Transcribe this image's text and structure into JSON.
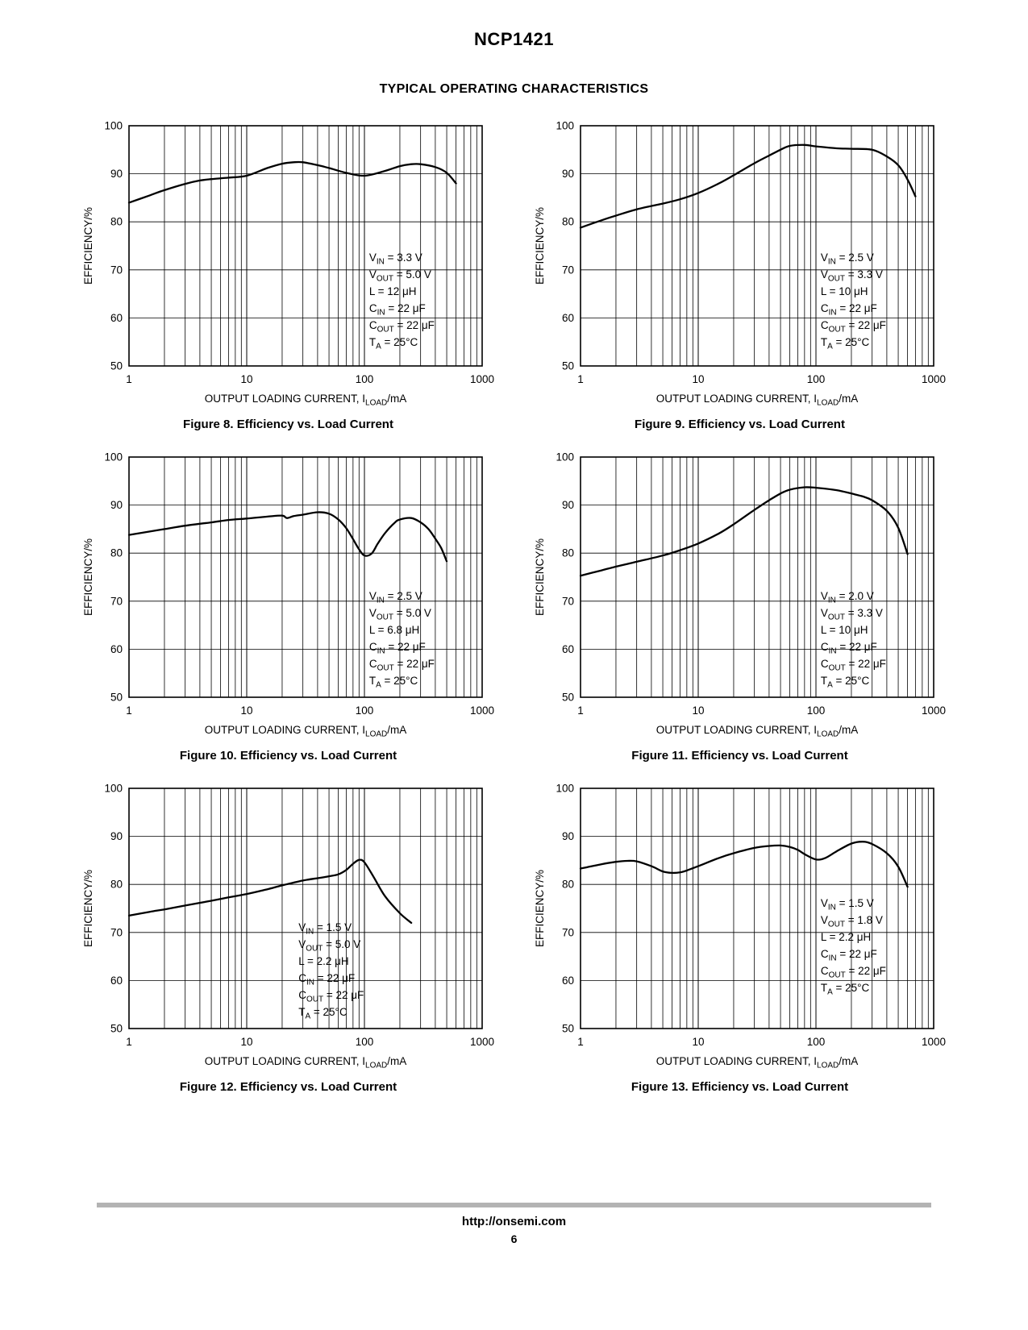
{
  "page": {
    "title": "NCP1421",
    "subtitle": "TYPICAL OPERATING CHARACTERISTICS",
    "footer_url": "http://onsemi.com",
    "page_number": "6"
  },
  "chart_data": [
    {
      "type": "line",
      "figure_caption": "Figure 8. Efficiency vs. Load Current",
      "xlabel": "OUTPUT LOADING CURRENT, I~LOAD~/mA",
      "ylabel": "EFFICIENCY/%",
      "xscale": "log",
      "xlim": [
        1,
        1000
      ],
      "ylim": [
        50,
        100
      ],
      "xticks": [
        1,
        10,
        100,
        1000
      ],
      "yticks": [
        50,
        60,
        70,
        80,
        90,
        100
      ],
      "grid": "log-x-minor-on, y-major-on",
      "annotation": [
        "V~IN~ = 3.3 V",
        "V~OUT~ = 5.0 V",
        "L = 12 μH",
        "C~IN~ = 22 μF",
        "C~OUT~ = 22 μF",
        "T~A~ = 25°C"
      ],
      "annotation_pos": {
        "x": 0.68,
        "y": 0.52
      },
      "series": [
        {
          "name": "efficiency",
          "points": [
            [
              1,
              84
            ],
            [
              1.5,
              85.5
            ],
            [
              2,
              86.6
            ],
            [
              3,
              87.9
            ],
            [
              4,
              88.6
            ],
            [
              5,
              88.9
            ],
            [
              7,
              89.2
            ],
            [
              10,
              89.6
            ],
            [
              15,
              91.2
            ],
            [
              20,
              92.1
            ],
            [
              25,
              92.4
            ],
            [
              30,
              92.4
            ],
            [
              40,
              91.8
            ],
            [
              50,
              91.2
            ],
            [
              70,
              90.2
            ],
            [
              100,
              89.6
            ],
            [
              150,
              90.6
            ],
            [
              200,
              91.6
            ],
            [
              250,
              92
            ],
            [
              300,
              92
            ],
            [
              400,
              91.4
            ],
            [
              500,
              90.2
            ],
            [
              600,
              88
            ]
          ]
        }
      ]
    },
    {
      "type": "line",
      "figure_caption": "Figure 9. Efficiency vs. Load Current",
      "xlabel": "OUTPUT LOADING CURRENT, I~LOAD~/mA",
      "ylabel": "EFFICIENCY/%",
      "xscale": "log",
      "xlim": [
        1,
        1000
      ],
      "ylim": [
        50,
        100
      ],
      "xticks": [
        1,
        10,
        100,
        1000
      ],
      "yticks": [
        50,
        60,
        70,
        80,
        90,
        100
      ],
      "grid": "log-x-minor-on, y-major-on",
      "annotation": [
        "V~IN~ = 2.5 V",
        "V~OUT~ = 3.3 V",
        "L = 10 μH",
        "C~IN~ = 22 μF",
        "C~OUT~ = 22 μF",
        "T~A~ = 25°C"
      ],
      "annotation_pos": {
        "x": 0.68,
        "y": 0.52
      },
      "series": [
        {
          "name": "efficiency",
          "points": [
            [
              1,
              78.8
            ],
            [
              1.5,
              80.3
            ],
            [
              2,
              81.3
            ],
            [
              3,
              82.6
            ],
            [
              5,
              83.8
            ],
            [
              7,
              84.7
            ],
            [
              10,
              86
            ],
            [
              15,
              88
            ],
            [
              20,
              89.7
            ],
            [
              30,
              92.2
            ],
            [
              40,
              93.8
            ],
            [
              50,
              95
            ],
            [
              60,
              95.8
            ],
            [
              80,
              96
            ],
            [
              100,
              95.7
            ],
            [
              150,
              95.3
            ],
            [
              200,
              95.2
            ],
            [
              300,
              95
            ],
            [
              400,
              93.6
            ],
            [
              500,
              91.8
            ],
            [
              600,
              88.8
            ],
            [
              700,
              85.3
            ]
          ]
        }
      ]
    },
    {
      "type": "line",
      "figure_caption": "Figure 10. Efficiency vs. Load Current",
      "xlabel": "OUTPUT LOADING CURRENT, I~LOAD~/mA",
      "ylabel": "EFFICIENCY/%",
      "xscale": "log",
      "xlim": [
        1,
        1000
      ],
      "ylim": [
        50,
        100
      ],
      "xticks": [
        1,
        10,
        100,
        1000
      ],
      "yticks": [
        50,
        60,
        70,
        80,
        90,
        100
      ],
      "grid": "log-x-minor-on, y-major-on",
      "annotation": [
        "V~IN~ = 2.5 V",
        "V~OUT~ = 5.0 V",
        "L = 6.8 μH",
        "C~IN~ = 22 μF",
        "C~OUT~ = 22 μF",
        "T~A~ = 25°C"
      ],
      "annotation_pos": {
        "x": 0.68,
        "y": 0.55
      },
      "series": [
        {
          "name": "efficiency",
          "points": [
            [
              1,
              83.8
            ],
            [
              1.5,
              84.5
            ],
            [
              2,
              85
            ],
            [
              3,
              85.7
            ],
            [
              5,
              86.4
            ],
            [
              7,
              86.9
            ],
            [
              10,
              87.2
            ],
            [
              15,
              87.6
            ],
            [
              20,
              87.8
            ],
            [
              22,
              87.3
            ],
            [
              25,
              87.7
            ],
            [
              30,
              88
            ],
            [
              40,
              88.5
            ],
            [
              50,
              88.2
            ],
            [
              60,
              87
            ],
            [
              70,
              85.2
            ],
            [
              80,
              82.9
            ],
            [
              90,
              80.8
            ],
            [
              100,
              79.5
            ],
            [
              115,
              79.9
            ],
            [
              130,
              82
            ],
            [
              150,
              84.2
            ],
            [
              180,
              86.3
            ],
            [
              200,
              87
            ],
            [
              250,
              87.3
            ],
            [
              300,
              86.4
            ],
            [
              350,
              85
            ],
            [
              400,
              83
            ],
            [
              450,
              81
            ],
            [
              500,
              78.3
            ]
          ]
        }
      ]
    },
    {
      "type": "line",
      "figure_caption": "Figure 11. Efficiency vs. Load Current",
      "xlabel": "OUTPUT LOADING CURRENT, I~LOAD~/mA",
      "ylabel": "EFFICIENCY/%",
      "xscale": "log",
      "xlim": [
        1,
        1000
      ],
      "ylim": [
        50,
        100
      ],
      "xticks": [
        1,
        10,
        100,
        1000
      ],
      "yticks": [
        50,
        60,
        70,
        80,
        90,
        100
      ],
      "grid": "log-x-minor-on, y-major-on",
      "annotation": [
        "V~IN~ = 2.0 V",
        "V~OUT~ = 3.3 V",
        "L = 10 μH",
        "C~IN~ = 22 μF",
        "C~OUT~ = 22 μF",
        "T~A~ = 25°C"
      ],
      "annotation_pos": {
        "x": 0.68,
        "y": 0.55
      },
      "series": [
        {
          "name": "efficiency",
          "points": [
            [
              1,
              75.3
            ],
            [
              1.5,
              76.4
            ],
            [
              2,
              77.2
            ],
            [
              3,
              78.2
            ],
            [
              5,
              79.5
            ],
            [
              7,
              80.6
            ],
            [
              10,
              82
            ],
            [
              15,
              84.1
            ],
            [
              20,
              86
            ],
            [
              30,
              89
            ],
            [
              40,
              91
            ],
            [
              50,
              92.4
            ],
            [
              60,
              93.2
            ],
            [
              80,
              93.7
            ],
            [
              100,
              93.6
            ],
            [
              150,
              93.1
            ],
            [
              200,
              92.4
            ],
            [
              250,
              91.8
            ],
            [
              300,
              91
            ],
            [
              400,
              88.8
            ],
            [
              500,
              85.3
            ],
            [
              600,
              79.8
            ]
          ]
        }
      ]
    },
    {
      "type": "line",
      "figure_caption": "Figure 12. Efficiency vs. Load Current",
      "xlabel": "OUTPUT LOADING CURRENT, I~LOAD~/mA",
      "ylabel": "EFFICIENCY/%",
      "xscale": "log",
      "xlim": [
        1,
        1000
      ],
      "ylim": [
        50,
        100
      ],
      "xticks": [
        1,
        10,
        100,
        1000
      ],
      "yticks": [
        50,
        60,
        70,
        80,
        90,
        100
      ],
      "grid": "log-x-minor-on, y-major-on",
      "annotation": [
        "V~IN~ = 1.5 V",
        "V~OUT~ = 5.0 V",
        "L = 2.2 μH",
        "C~IN~ = 22 μF",
        "C~OUT~ = 22 μF",
        "T~A~ = 25°C"
      ],
      "annotation_pos": {
        "x": 0.48,
        "y": 0.55
      },
      "series": [
        {
          "name": "efficiency",
          "points": [
            [
              1,
              73.5
            ],
            [
              1.5,
              74.3
            ],
            [
              2,
              74.8
            ],
            [
              3,
              75.6
            ],
            [
              5,
              76.6
            ],
            [
              7,
              77.3
            ],
            [
              10,
              78
            ],
            [
              15,
              79
            ],
            [
              20,
              79.8
            ],
            [
              30,
              80.8
            ],
            [
              40,
              81.3
            ],
            [
              50,
              81.7
            ],
            [
              60,
              82.1
            ],
            [
              70,
              83
            ],
            [
              80,
              84.3
            ],
            [
              90,
              85.1
            ],
            [
              100,
              84.6
            ],
            [
              120,
              81.5
            ],
            [
              150,
              77.5
            ],
            [
              200,
              74
            ],
            [
              250,
              72
            ]
          ]
        }
      ]
    },
    {
      "type": "line",
      "figure_caption": "Figure 13. Efficiency vs. Load Current",
      "xlabel": "OUTPUT LOADING CURRENT, I~LOAD~/mA",
      "ylabel": "EFFICIENCY/%",
      "xscale": "log",
      "xlim": [
        1,
        1000
      ],
      "ylim": [
        50,
        100
      ],
      "xticks": [
        1,
        10,
        100,
        1000
      ],
      "yticks": [
        50,
        60,
        70,
        80,
        90,
        100
      ],
      "grid": "log-x-minor-on, y-major-on",
      "annotation": [
        "V~IN~ = 1.5 V",
        "V~OUT~ = 1.8 V",
        "L = 2.2 μH",
        "C~IN~ = 22 μF",
        "C~OUT~ = 22 μF",
        "T~A~ = 25°C"
      ],
      "annotation_pos": {
        "x": 0.68,
        "y": 0.45
      },
      "series": [
        {
          "name": "efficiency",
          "points": [
            [
              1,
              83.3
            ],
            [
              1.5,
              84.2
            ],
            [
              2,
              84.7
            ],
            [
              2.5,
              84.9
            ],
            [
              3,
              84.8
            ],
            [
              4,
              83.8
            ],
            [
              5,
              82.7
            ],
            [
              6,
              82.4
            ],
            [
              7,
              82.5
            ],
            [
              8,
              82.9
            ],
            [
              10,
              83.8
            ],
            [
              15,
              85.5
            ],
            [
              20,
              86.5
            ],
            [
              30,
              87.6
            ],
            [
              40,
              88
            ],
            [
              50,
              88.1
            ],
            [
              60,
              87.8
            ],
            [
              70,
              87.2
            ],
            [
              80,
              86.3
            ],
            [
              100,
              85.2
            ],
            [
              120,
              85.5
            ],
            [
              150,
              86.9
            ],
            [
              200,
              88.5
            ],
            [
              250,
              88.9
            ],
            [
              300,
              88.4
            ],
            [
              400,
              86.5
            ],
            [
              500,
              83.7
            ],
            [
              600,
              79.5
            ]
          ]
        }
      ]
    }
  ]
}
